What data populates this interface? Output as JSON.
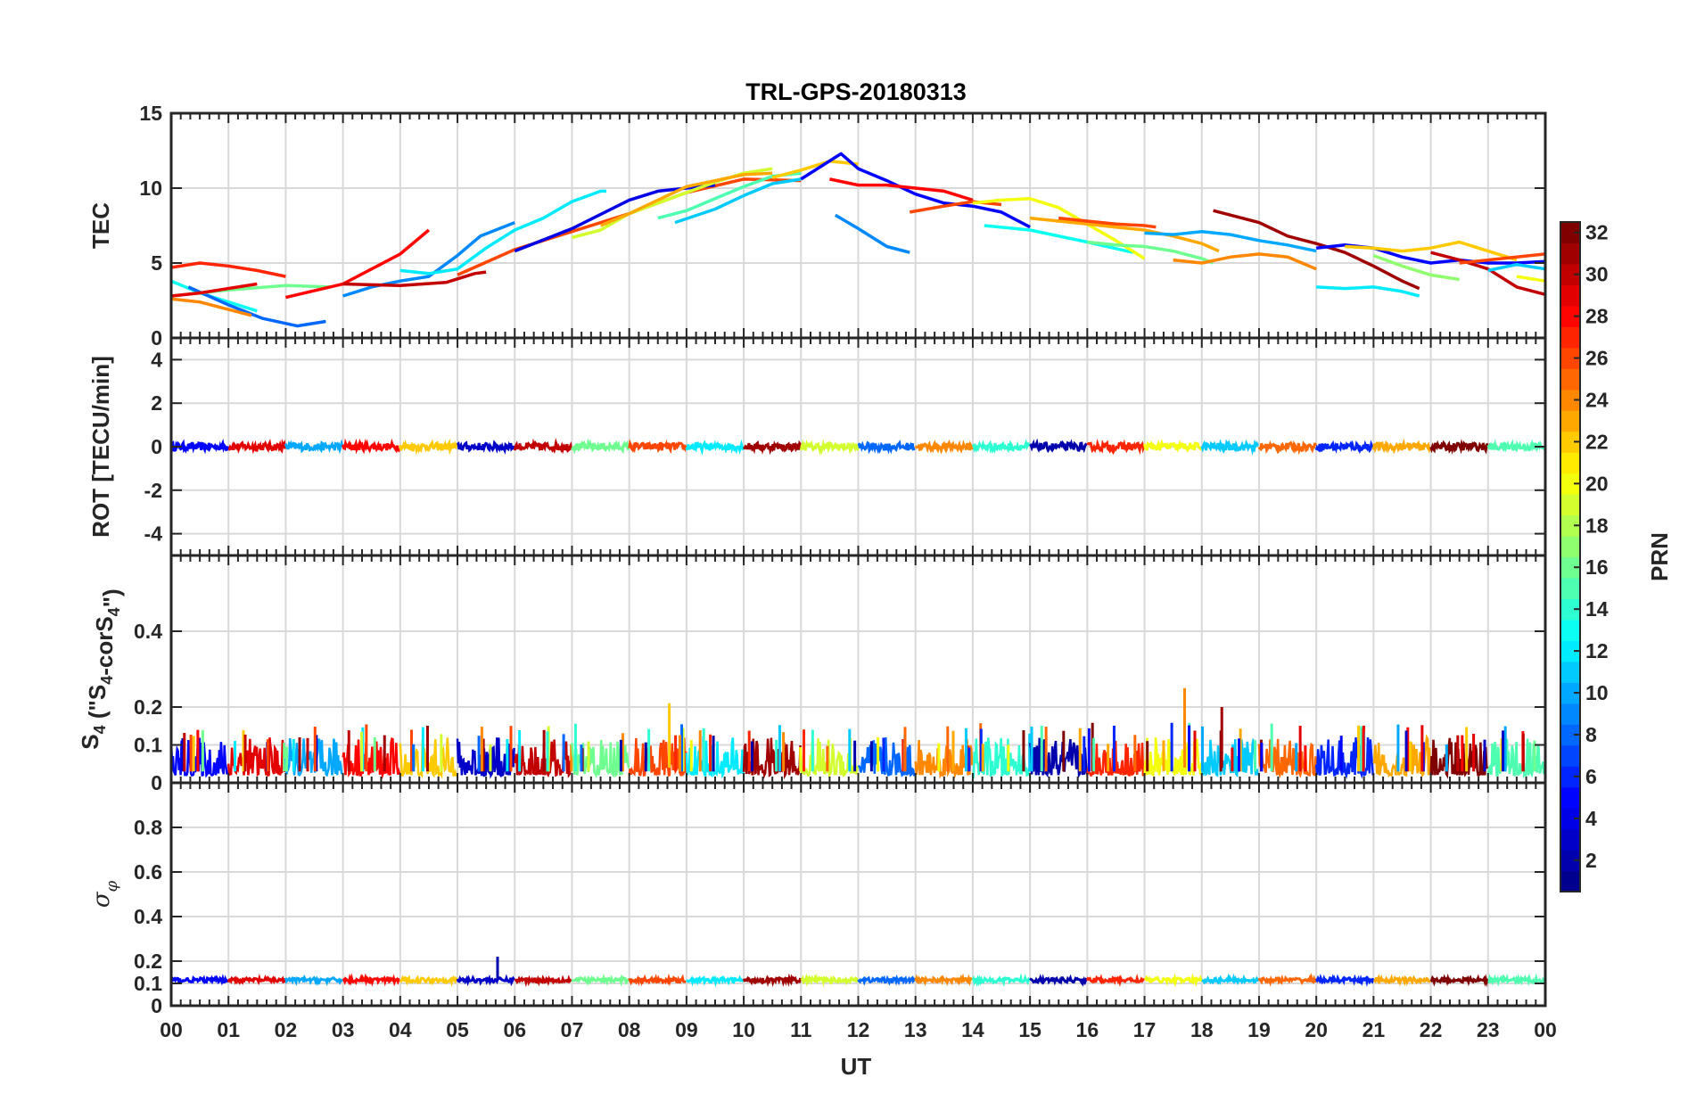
{
  "chart_data": {
    "type": "line",
    "title": "TRL-GPS-20180313",
    "xlabel": "UT",
    "x_ticks": [
      "00",
      "01",
      "02",
      "03",
      "04",
      "05",
      "06",
      "07",
      "08",
      "09",
      "10",
      "11",
      "12",
      "13",
      "14",
      "15",
      "16",
      "17",
      "18",
      "19",
      "20",
      "21",
      "22",
      "23",
      "00"
    ],
    "xlim": [
      0,
      24
    ],
    "grid": true,
    "colorbar": {
      "label": "PRN",
      "range": [
        1,
        32
      ],
      "ticks": [
        "2",
        "4",
        "6",
        "8",
        "10",
        "12",
        "14",
        "16",
        "18",
        "20",
        "22",
        "24",
        "26",
        "28",
        "30",
        "32"
      ],
      "colormap": [
        "#00008f",
        "#0000ff",
        "#0080ff",
        "#00ffff",
        "#80ff80",
        "#ffff00",
        "#ff8000",
        "#ff0000",
        "#800000"
      ]
    },
    "panels": [
      {
        "ylabel": "TEC",
        "ylim": [
          0,
          15
        ],
        "yticks": [
          "0",
          "5",
          "10",
          "15"
        ],
        "series": [
          {
            "prn": 27,
            "x": [
              0,
              0.5,
              1,
              1.5,
              2
            ],
            "y": [
              4.7,
              5.0,
              4.8,
              4.5,
              4.1
            ]
          },
          {
            "prn": 13,
            "x": [
              0,
              0.5,
              1,
              1.5
            ],
            "y": [
              3.8,
              3.0,
              2.4,
              1.8
            ]
          },
          {
            "prn": 8,
            "x": [
              0.3,
              1,
              1.6,
              2.2,
              2.7
            ],
            "y": [
              3.4,
              2.2,
              1.3,
              0.8,
              1.1
            ]
          },
          {
            "prn": 16,
            "x": [
              0,
              1,
              2,
              2.8
            ],
            "y": [
              2.8,
              3.2,
              3.5,
              3.4
            ]
          },
          {
            "prn": 29,
            "x": [
              0,
              0.5,
              1.5
            ],
            "y": [
              2.8,
              3.0,
              3.6
            ]
          },
          {
            "prn": 24,
            "x": [
              0,
              0.5,
              1,
              1.4
            ],
            "y": [
              2.6,
              2.4,
              1.9,
              1.5
            ]
          },
          {
            "prn": 28,
            "x": [
              2,
              3,
              4,
              4.5
            ],
            "y": [
              2.7,
              3.6,
              5.6,
              7.2
            ]
          },
          {
            "prn": 9,
            "x": [
              3,
              3.5,
              4,
              4.5,
              5,
              5.4,
              6
            ],
            "y": [
              2.8,
              3.4,
              3.8,
              4.1,
              5.5,
              6.8,
              7.7
            ]
          },
          {
            "prn": 30,
            "x": [
              3,
              4,
              4.8,
              5.3,
              5.5
            ],
            "y": [
              3.6,
              3.5,
              3.7,
              4.3,
              4.4
            ]
          },
          {
            "prn": 12,
            "x": [
              4,
              4.5,
              5,
              5.5,
              6,
              6.5,
              7,
              7.5,
              7.6
            ],
            "y": [
              4.5,
              4.3,
              4.6,
              6.0,
              7.2,
              8.0,
              9.1,
              9.8,
              9.8
            ]
          },
          {
            "prn": 26,
            "x": [
              5,
              6,
              7,
              8,
              9,
              10,
              11
            ],
            "y": [
              4.2,
              5.9,
              7.1,
              8.3,
              9.7,
              10.6,
              10.5
            ]
          },
          {
            "prn": 4,
            "x": [
              6,
              7,
              8,
              8.5,
              9,
              9.5
            ],
            "y": [
              5.8,
              7.3,
              9.2,
              9.8,
              10.0,
              10.2
            ]
          },
          {
            "prn": 19,
            "x": [
              7,
              7.5,
              8,
              8.5,
              9,
              9.5,
              10,
              10.5
            ],
            "y": [
              6.7,
              7.2,
              8.3,
              9.0,
              9.7,
              10.4,
              11.0,
              11.3
            ]
          },
          {
            "prn": 23,
            "x": [
              7.5,
              8,
              8.5,
              9,
              9.5,
              10,
              10.5
            ],
            "y": [
              7.5,
              8.3,
              9.2,
              10.1,
              10.5,
              10.9,
              11.0
            ]
          },
          {
            "prn": 15,
            "x": [
              8.5,
              9,
              9.5,
              10,
              10.5,
              11
            ],
            "y": [
              8.0,
              8.5,
              9.3,
              10.1,
              10.8,
              11.0
            ]
          },
          {
            "prn": 11,
            "x": [
              8.8,
              9.5,
              10,
              10.5,
              11
            ],
            "y": [
              7.7,
              8.6,
              9.5,
              10.3,
              10.6
            ]
          },
          {
            "prn": 22,
            "x": [
              10.5,
              11,
              11.5,
              12
            ],
            "y": [
              10.7,
              11.2,
              11.8,
              11.6
            ]
          },
          {
            "prn": 5,
            "x": [
              11,
              11.7,
              12,
              12.5,
              13,
              13.5,
              14,
              14.5,
              15
            ],
            "y": [
              10.6,
              12.3,
              11.3,
              10.5,
              9.6,
              9.0,
              8.8,
              8.4,
              7.4
            ]
          },
          {
            "prn": 28,
            "x": [
              11.5,
              12,
              12.5,
              13,
              13.5,
              14
            ],
            "y": [
              10.6,
              10.2,
              10.2,
              10.0,
              9.8,
              9.2
            ]
          },
          {
            "prn": 9,
            "x": [
              11.6,
              12,
              12.5,
              12.9
            ],
            "y": [
              8.2,
              7.3,
              6.1,
              5.7
            ]
          },
          {
            "prn": 26,
            "x": [
              12.9,
              13.5,
              14,
              14.5
            ],
            "y": [
              8.4,
              8.8,
              9.1,
              8.9
            ]
          },
          {
            "prn": 13,
            "x": [
              14.2,
              15,
              16,
              16.8
            ],
            "y": [
              7.5,
              7.2,
              6.4,
              5.7
            ]
          },
          {
            "prn": 20,
            "x": [
              14,
              14.5,
              15,
              15.5,
              16,
              16.5,
              17
            ],
            "y": [
              9.0,
              9.2,
              9.3,
              8.7,
              7.6,
              6.5,
              5.3
            ]
          },
          {
            "prn": 23,
            "x": [
              15,
              15.5,
              16,
              16.5,
              17,
              17.5,
              18,
              18.3
            ],
            "y": [
              8.0,
              7.8,
              7.6,
              7.4,
              7.2,
              6.8,
              6.3,
              5.8
            ]
          },
          {
            "prn": 26,
            "x": [
              15.5,
              16,
              16.5,
              17,
              17.2
            ],
            "y": [
              8.0,
              7.8,
              7.6,
              7.5,
              7.4
            ]
          },
          {
            "prn": 16,
            "x": [
              16,
              16.5,
              17,
              17.5,
              18,
              18.2
            ],
            "y": [
              6.4,
              6.2,
              6.1,
              5.8,
              5.3,
              5.0
            ]
          },
          {
            "prn": 10,
            "x": [
              17,
              17.5,
              18,
              18.5,
              19,
              19.5,
              20
            ],
            "y": [
              7.0,
              6.9,
              7.1,
              6.9,
              6.5,
              6.2,
              5.8
            ]
          },
          {
            "prn": 24,
            "x": [
              17.5,
              18,
              18.5,
              19,
              19.5,
              20
            ],
            "y": [
              5.2,
              5.0,
              5.4,
              5.6,
              5.4,
              4.6
            ]
          },
          {
            "prn": 31,
            "x": [
              18.2,
              19,
              19.5,
              20,
              20.5,
              21,
              21.5,
              21.8
            ],
            "y": [
              8.5,
              7.7,
              6.8,
              6.3,
              5.7,
              4.8,
              3.8,
              3.3
            ]
          },
          {
            "prn": 12,
            "x": [
              20,
              20.5,
              21,
              21.5,
              21.8
            ],
            "y": [
              3.4,
              3.3,
              3.4,
              3.1,
              2.8
            ]
          },
          {
            "prn": 5,
            "x": [
              20,
              20.5,
              21,
              21.5,
              22,
              22.5,
              23,
              23.5,
              24
            ],
            "y": [
              6.0,
              6.2,
              6.0,
              5.4,
              5.0,
              5.2,
              5.0,
              5.0,
              5.1
            ]
          },
          {
            "prn": 22,
            "x": [
              20.5,
              21,
              21.5,
              22,
              22.5,
              23,
              23.5
            ],
            "y": [
              6.1,
              6.0,
              5.8,
              6.0,
              6.4,
              5.8,
              5.2
            ]
          },
          {
            "prn": 17,
            "x": [
              21,
              21.5,
              22,
              22.5
            ],
            "y": [
              5.5,
              4.8,
              4.2,
              3.9
            ]
          },
          {
            "prn": 30,
            "x": [
              22,
              22.5,
              23,
              23.5,
              24
            ],
            "y": [
              5.7,
              5.2,
              4.6,
              3.4,
              2.9
            ]
          },
          {
            "prn": 26,
            "x": [
              22.5,
              23,
              23.5,
              24
            ],
            "y": [
              5.0,
              5.2,
              5.4,
              5.6
            ]
          },
          {
            "prn": 11,
            "x": [
              23,
              23.5,
              24
            ],
            "y": [
              4.5,
              4.9,
              4.6
            ]
          },
          {
            "prn": 20,
            "x": [
              23.5,
              24
            ],
            "y": [
              4.1,
              3.8
            ]
          }
        ]
      },
      {
        "ylabel": "ROT [TECU/min]",
        "ylim": [
          -5,
          5
        ],
        "yticks": [
          "-4",
          "-2",
          "0",
          "2",
          "4"
        ],
        "series_note": "all PRNs fluctuate within about ±0.3 TECU/min around 0"
      },
      {
        "ylabel": "S4 (\"S4-corS4\")",
        "ylim": [
          0,
          0.6
        ],
        "yticks": [
          "0",
          "0.1",
          "0.2",
          "0.4"
        ],
        "series_note": "noise mostly 0.02–0.12 with spikes near 0.21 (08:40) and 0.25 (17:40)"
      },
      {
        "ylabel": "σφ",
        "ylim": [
          0,
          1
        ],
        "yticks": [
          "0",
          "0.1",
          "0.2",
          "0.4",
          "0.6",
          "0.8"
        ],
        "series_note": "baseline near 0.11 with a spike near 0.22 at 05:42"
      }
    ]
  }
}
